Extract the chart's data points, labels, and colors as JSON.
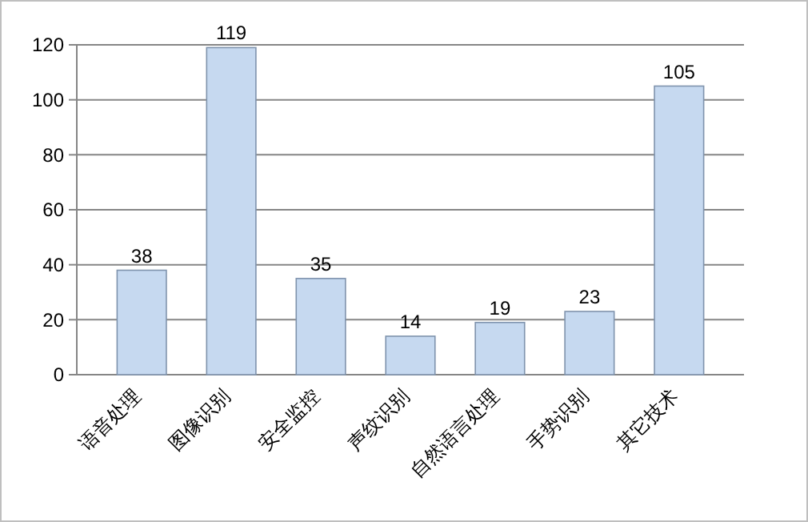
{
  "chart_data": {
    "type": "bar",
    "categories": [
      "语音处理",
      "图像识别",
      "安全监控",
      "声纹识别",
      "自然语言处理",
      "手势识别",
      "其它技术"
    ],
    "values": [
      38,
      119,
      35,
      14,
      19,
      23,
      105
    ],
    "color": "#c6d9f0",
    "ylim": [
      0,
      120
    ],
    "yticks": [
      0,
      20,
      40,
      60,
      80,
      100,
      120
    ],
    "grid": "y",
    "data_labels": true
  }
}
